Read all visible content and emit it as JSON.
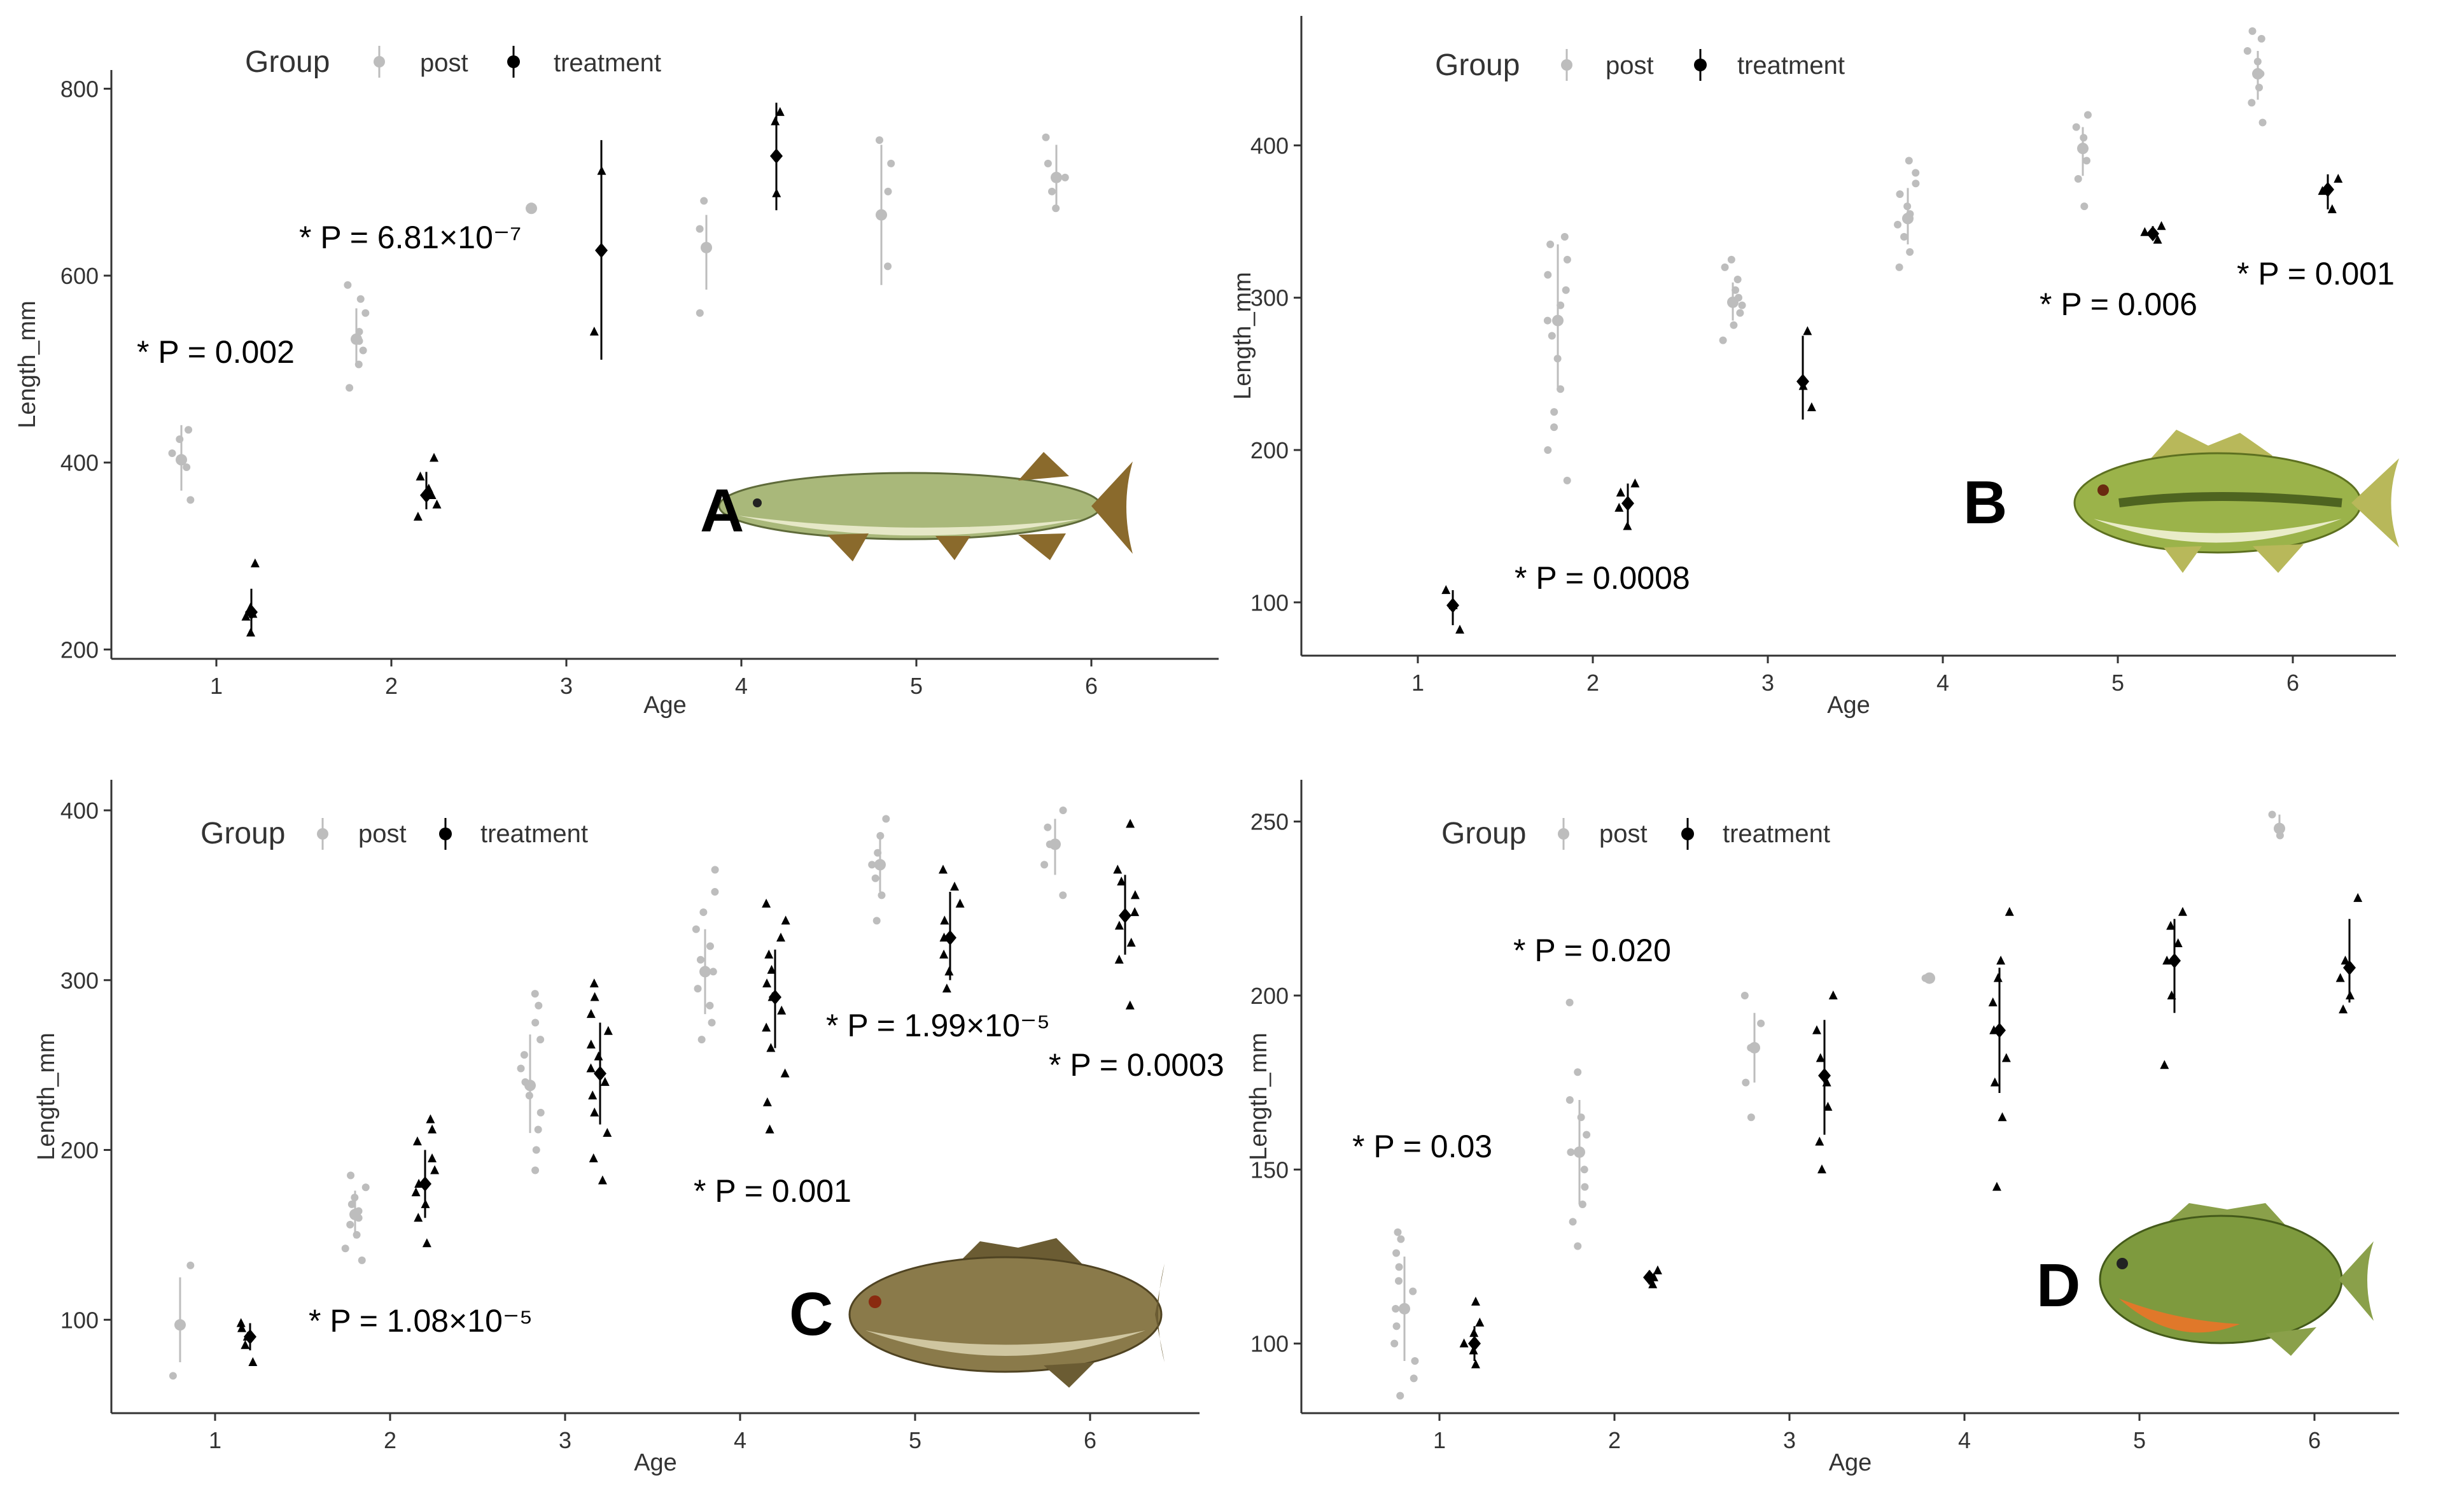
{
  "legend": {
    "title": "Group",
    "post_label": "post",
    "treatment_label": "treatment"
  },
  "colors": {
    "post": "#bdbdbd",
    "treatment": "#000000",
    "axis": "#333333"
  },
  "chart_data": [
    {
      "panel": "A",
      "type": "scatter",
      "xlabel": "Age",
      "ylabel": "Length_mm",
      "x_categories": [
        1,
        2,
        3,
        4,
        5,
        6
      ],
      "ylim": [
        190,
        820
      ],
      "yticks": [
        200,
        400,
        600,
        800
      ],
      "fish": {
        "body": "#a9b87a",
        "belly": "#e6e8c7",
        "fin": "#8a6a2c"
      },
      "series": [
        {
          "name": "post",
          "points": [
            {
              "age": 1,
              "mean": 403,
              "lo": 370,
              "hi": 440,
              "obs": [
                360,
                395,
                410,
                425,
                435
              ]
            },
            {
              "age": 2,
              "mean": 532,
              "lo": 505,
              "hi": 565,
              "obs": [
                480,
                505,
                520,
                530,
                540,
                560,
                575,
                590
              ]
            },
            {
              "age": 3,
              "mean": 672,
              "lo": 672,
              "hi": 672,
              "obs": [
                672
              ]
            },
            {
              "age": 4,
              "mean": 630,
              "lo": 585,
              "hi": 665,
              "obs": [
                560,
                630,
                650,
                680
              ]
            },
            {
              "age": 5,
              "mean": 665,
              "lo": 590,
              "hi": 740,
              "obs": [
                610,
                690,
                720,
                745
              ]
            },
            {
              "age": 6,
              "mean": 705,
              "lo": 672,
              "hi": 740,
              "obs": [
                672,
                690,
                705,
                720,
                748
              ]
            }
          ]
        },
        {
          "name": "treatment",
          "points": [
            {
              "age": 1,
              "mean": 240,
              "lo": 220,
              "hi": 265,
              "obs": [
                218,
                235,
                245,
                292,
                238
              ]
            },
            {
              "age": 2,
              "mean": 365,
              "lo": 350,
              "hi": 390,
              "obs": [
                342,
                355,
                365,
                372,
                385,
                405
              ]
            },
            {
              "age": 3,
              "mean": 627,
              "lo": 510,
              "hi": 745,
              "obs": [
                540,
                712
              ]
            },
            {
              "age": 4,
              "mean": 728,
              "lo": 670,
              "hi": 785,
              "obs": [
                688,
                765,
                775
              ]
            }
          ]
        }
      ],
      "annotations": [
        "* P = 0.002",
        "* P = 6.81×10⁻⁷"
      ]
    },
    {
      "panel": "B",
      "type": "scatter",
      "xlabel": "Age",
      "ylabel": "Length_mm",
      "x_categories": [
        1,
        2,
        3,
        4,
        5,
        6
      ],
      "ylim": [
        65,
        485
      ],
      "yticks": [
        100,
        200,
        300,
        400
      ],
      "fish": {
        "body": "#9bb34a",
        "belly": "#e9ecc8",
        "fin": "#b8b85a"
      },
      "series": [
        {
          "name": "post",
          "points": [
            {
              "age": 2,
              "mean": 285,
              "lo": 240,
              "hi": 335,
              "obs": [
                180,
                200,
                215,
                225,
                240,
                260,
                275,
                285,
                295,
                305,
                315,
                325,
                335,
                340
              ]
            },
            {
              "age": 3,
              "mean": 297,
              "lo": 285,
              "hi": 310,
              "obs": [
                272,
                282,
                290,
                295,
                300,
                305,
                312,
                320,
                325
              ]
            },
            {
              "age": 4,
              "mean": 352,
              "lo": 335,
              "hi": 372,
              "obs": [
                320,
                330,
                340,
                348,
                355,
                360,
                368,
                375,
                382,
                390
              ]
            },
            {
              "age": 5,
              "mean": 398,
              "lo": 380,
              "hi": 412,
              "obs": [
                360,
                378,
                390,
                398,
                405,
                412,
                420
              ]
            },
            {
              "age": 6,
              "mean": 447,
              "lo": 430,
              "hi": 462,
              "obs": [
                415,
                428,
                438,
                447,
                455,
                462,
                470,
                475
              ]
            }
          ]
        },
        {
          "name": "treatment",
          "points": [
            {
              "age": 1,
              "mean": 98,
              "lo": 85,
              "hi": 108,
              "obs": [
                82,
                98,
                108
              ]
            },
            {
              "age": 2,
              "mean": 165,
              "lo": 150,
              "hi": 178,
              "obs": [
                150,
                162,
                172,
                178
              ]
            },
            {
              "age": 3,
              "mean": 245,
              "lo": 220,
              "hi": 275,
              "obs": [
                228,
                242,
                278
              ]
            },
            {
              "age": 5,
              "mean": 342,
              "lo": 338,
              "hi": 347,
              "obs": [
                338,
                343,
                347
              ]
            },
            {
              "age": 6,
              "mean": 371,
              "lo": 358,
              "hi": 381,
              "obs": [
                358,
                370,
                378
              ]
            }
          ]
        }
      ],
      "annotations": [
        "* P = 0.0008",
        "* P = 0.006",
        "* P = 0.001"
      ]
    },
    {
      "panel": "C",
      "type": "scatter",
      "xlabel": "Age",
      "ylabel": "Length_mm",
      "x_categories": [
        1,
        2,
        3,
        4,
        5,
        6
      ],
      "ylim": [
        45,
        418
      ],
      "yticks": [
        100,
        200,
        300,
        400
      ],
      "fish": {
        "body": "#8a7a4a",
        "belly": "#cfc6a0",
        "fin": "#6b5c33"
      },
      "series": [
        {
          "name": "post",
          "points": [
            {
              "age": 1,
              "mean": 97,
              "lo": 75,
              "hi": 125,
              "obs": [
                67,
                97,
                132
              ]
            },
            {
              "age": 2,
              "mean": 162,
              "lo": 148,
              "hi": 176,
              "obs": [
                135,
                142,
                150,
                156,
                160,
                164,
                168,
                172,
                178,
                185
              ]
            },
            {
              "age": 3,
              "mean": 238,
              "lo": 210,
              "hi": 268,
              "obs": [
                188,
                200,
                212,
                222,
                232,
                240,
                248,
                256,
                265,
                275,
                285,
                292
              ]
            },
            {
              "age": 4,
              "mean": 305,
              "lo": 280,
              "hi": 330,
              "obs": [
                265,
                275,
                285,
                295,
                305,
                312,
                320,
                330,
                340,
                352,
                365
              ]
            },
            {
              "age": 5,
              "mean": 368,
              "lo": 352,
              "hi": 385,
              "obs": [
                335,
                350,
                360,
                368,
                375,
                385,
                395
              ]
            },
            {
              "age": 6,
              "mean": 380,
              "lo": 362,
              "hi": 395,
              "obs": [
                350,
                368,
                380,
                390,
                400
              ]
            }
          ]
        },
        {
          "name": "treatment",
          "points": [
            {
              "age": 1,
              "mean": 90,
              "lo": 82,
              "hi": 98,
              "obs": [
                75,
                85,
                90,
                95,
                98
              ]
            },
            {
              "age": 2,
              "mean": 180,
              "lo": 160,
              "hi": 200,
              "obs": [
                145,
                160,
                168,
                175,
                180,
                188,
                195,
                205,
                212,
                218
              ]
            },
            {
              "age": 3,
              "mean": 245,
              "lo": 215,
              "hi": 275,
              "obs": [
                182,
                195,
                210,
                222,
                232,
                240,
                248,
                255,
                262,
                270,
                280,
                290,
                298
              ]
            },
            {
              "age": 4,
              "mean": 290,
              "lo": 260,
              "hi": 318,
              "obs": [
                212,
                228,
                245,
                260,
                272,
                282,
                290,
                298,
                306,
                315,
                325,
                335,
                345
              ]
            },
            {
              "age": 5,
              "mean": 325,
              "lo": 300,
              "hi": 352,
              "obs": [
                295,
                305,
                315,
                325,
                335,
                345,
                355,
                365
              ]
            },
            {
              "age": 6,
              "mean": 338,
              "lo": 315,
              "hi": 362,
              "obs": [
                285,
                312,
                322,
                332,
                340,
                350,
                358,
                365,
                392
              ]
            }
          ]
        }
      ],
      "annotations": [
        "* P = 1.08×10⁻⁵",
        "* P = 0.001",
        "* P = 1.99×10⁻⁵",
        "* P = 0.0003"
      ]
    },
    {
      "panel": "D",
      "type": "scatter",
      "xlabel": "Age",
      "ylabel": "Length_mm",
      "x_categories": [
        1,
        2,
        3,
        4,
        5,
        6
      ],
      "ylim": [
        80,
        262
      ],
      "yticks": [
        100,
        150,
        200,
        250
      ],
      "fish": {
        "body": "#7e9a3e",
        "belly": "#e0782a",
        "fin": "#8aa04a"
      },
      "series": [
        {
          "name": "post",
          "points": [
            {
              "age": 1,
              "mean": 110,
              "lo": 95,
              "hi": 125,
              "obs": [
                85,
                90,
                95,
                100,
                105,
                110,
                115,
                118,
                122,
                126,
                130,
                132
              ]
            },
            {
              "age": 2,
              "mean": 155,
              "lo": 140,
              "hi": 170,
              "obs": [
                128,
                135,
                140,
                145,
                150,
                155,
                160,
                165,
                170,
                178,
                198
              ]
            },
            {
              "age": 3,
              "mean": 185,
              "lo": 175,
              "hi": 195,
              "obs": [
                165,
                175,
                185,
                192,
                200
              ]
            },
            {
              "age": 4,
              "mean": 205,
              "lo": 205,
              "hi": 205,
              "obs": [
                205
              ]
            },
            {
              "age": 6,
              "mean": 248,
              "lo": 245,
              "hi": 252,
              "obs": [
                246,
                252
              ]
            }
          ]
        },
        {
          "name": "treatment",
          "points": [
            {
              "age": 1,
              "mean": 100,
              "lo": 95,
              "hi": 105,
              "obs": [
                94,
                98,
                100,
                103,
                106,
                112
              ]
            },
            {
              "age": 2,
              "mean": 119,
              "lo": 117,
              "hi": 121,
              "obs": [
                117,
                119,
                121
              ]
            },
            {
              "age": 3,
              "mean": 177,
              "lo": 160,
              "hi": 193,
              "obs": [
                150,
                158,
                168,
                175,
                182,
                190,
                200
              ]
            },
            {
              "age": 4,
              "mean": 190,
              "lo": 172,
              "hi": 208,
              "obs": [
                145,
                165,
                175,
                182,
                190,
                198,
                205,
                210,
                224
              ]
            },
            {
              "age": 5,
              "mean": 210,
              "lo": 195,
              "hi": 222,
              "obs": [
                180,
                200,
                210,
                215,
                220,
                224
              ]
            },
            {
              "age": 6,
              "mean": 208,
              "lo": 198,
              "hi": 222,
              "obs": [
                196,
                200,
                205,
                210,
                228
              ]
            }
          ]
        }
      ],
      "annotations": [
        "* P = 0.03",
        "* P = 0.020"
      ]
    }
  ]
}
